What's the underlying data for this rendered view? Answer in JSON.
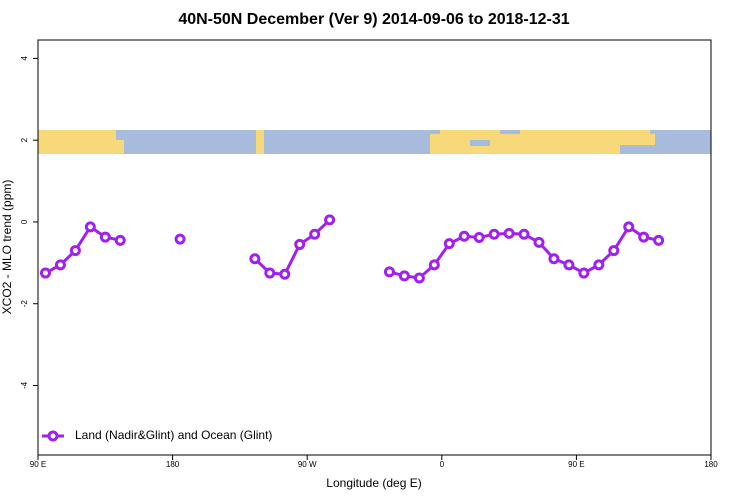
{
  "chart_data": {
    "type": "line",
    "title": "40N-50N December (Ver 9)   2014-09-06 to 2018-12-31",
    "x_label": "Longitude (deg E)",
    "y_label": "XCO2 - MLO trend (ppm)",
    "x": [
      95,
      105,
      115,
      125,
      135,
      145,
      155,
      165,
      175,
      185,
      195,
      205,
      215,
      225,
      235,
      245,
      255,
      265,
      275,
      285,
      295,
      305,
      315,
      325,
      335,
      345,
      355,
      365,
      375,
      385,
      395,
      405,
      415,
      425,
      435,
      445,
      455,
      465,
      475,
      485,
      495,
      505
    ],
    "series": [
      {
        "name": "Land (Nadir&Glint) and Ocean (Glint)",
        "color": "#a020f0",
        "values": [
          -1.25,
          -1.05,
          -0.7,
          -0.12,
          -0.37,
          -0.45,
          null,
          null,
          null,
          -0.42,
          null,
          null,
          null,
          null,
          -0.9,
          -1.25,
          -1.28,
          -0.55,
          -0.3,
          0.05,
          null,
          null,
          null,
          -1.22,
          -1.32,
          -1.37,
          -1.05,
          -0.53,
          -0.35,
          -0.38,
          -0.3,
          -0.28,
          -0.3,
          -0.5,
          -0.9,
          -1.05,
          -1.25,
          -1.05,
          -0.7,
          -0.12,
          -0.37,
          -0.45
        ]
      }
    ],
    "xlim": [
      90,
      540
    ],
    "xticks": [
      {
        "value": 90,
        "label": "90 E"
      },
      180,
      {
        "value": 270,
        "label": "90 W"
      },
      {
        "value": 360,
        "label": "0"
      },
      {
        "value": 450,
        "label": "90 E"
      },
      {
        "value": 540,
        "label": "180"
      }
    ],
    "ylim": [
      -5.7,
      4.45
    ],
    "yticks": [
      -4,
      -2,
      0,
      2,
      4
    ],
    "legend": "bottom-left"
  }
}
